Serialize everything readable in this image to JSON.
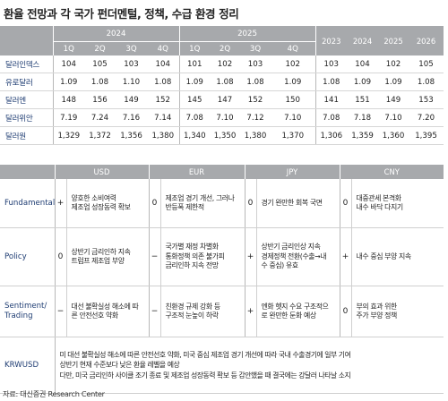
{
  "title": "환율 전망과 각 국가 펀더멘털, 정책, 수급 환경 정리",
  "forecast": {
    "year_2024": "2024",
    "year_2025": "2025",
    "quarters": [
      "1Q",
      "2Q",
      "3Q",
      "4Q"
    ],
    "annual_years": [
      "2023",
      "2024",
      "2025",
      "2026"
    ],
    "rows": [
      {
        "label": "달러인덱스",
        "q2024": [
          "104",
          "105",
          "103",
          "104"
        ],
        "q2025": [
          "101",
          "102",
          "103",
          "102"
        ],
        "annual": [
          "103",
          "104",
          "102",
          "105"
        ]
      },
      {
        "label": "유로달러",
        "q2024": [
          "1.09",
          "1.08",
          "1.10",
          "1.08"
        ],
        "q2025": [
          "1.09",
          "1.08",
          "1.08",
          "1.09"
        ],
        "annual": [
          "1.08",
          "1.09",
          "1.09",
          "1.08"
        ]
      },
      {
        "label": "달러엔",
        "q2024": [
          "148",
          "156",
          "149",
          "152"
        ],
        "q2025": [
          "145",
          "147",
          "152",
          "150"
        ],
        "annual": [
          "141",
          "151",
          "149",
          "153"
        ]
      },
      {
        "label": "달러위안",
        "q2024": [
          "7.19",
          "7.24",
          "7.16",
          "7.14"
        ],
        "q2025": [
          "7.08",
          "7.10",
          "7.12",
          "7.10"
        ],
        "annual": [
          "7.08",
          "7.18",
          "7.10",
          "7.20"
        ]
      },
      {
        "label": "달러원",
        "q2024": [
          "1,329",
          "1,372",
          "1,356",
          "1,380"
        ],
        "q2025": [
          "1,340",
          "1,350",
          "1,380",
          "1,370"
        ],
        "annual": [
          "1,306",
          "1,359",
          "1,360",
          "1,395"
        ]
      }
    ]
  },
  "fundamentals": {
    "currencies": [
      "USD",
      "EUR",
      "JPY",
      "CNY"
    ],
    "rows": [
      {
        "category": "Fundamental",
        "cells": [
          {
            "sign": "+",
            "text": "양호한 소비여력\n제조업 성장동력 확보"
          },
          {
            "sign": "0",
            "text": "제조업 경기 개선, 그러나\n반등폭 제한적"
          },
          {
            "sign": "0",
            "text": "경기 완만한 회복 국면"
          },
          {
            "sign": "0",
            "text": "대중관세 본격화\n내수 바닥 다지기"
          }
        ]
      },
      {
        "category": "Policy",
        "cells": [
          {
            "sign": "0",
            "text": "상반기 금리인하 지속\n트럼프 제조업 부양"
          },
          {
            "sign": "−",
            "text": "국가별 재정 차별화\n통화정책 의존 불가피\n금리인하 지속 전망"
          },
          {
            "sign": "+",
            "text": "상반기 금리인상 지속\n경제정책 전환(수출→내\n수 중심) 유효"
          },
          {
            "sign": "+",
            "text": "내수 중심 부양 지속"
          }
        ]
      },
      {
        "category": "Sentiment/\nTrading",
        "cells": [
          {
            "sign": "−",
            "text": "대선 불확실성 해소에 따\n른 안전선호 약화"
          },
          {
            "sign": "−",
            "text": "친환경 규제 강화 등\n구조적 눈높이 하락"
          },
          {
            "sign": "+",
            "text": "엔화 헷지 수요 구조적으\n로 완만한 둔화 예상"
          },
          {
            "sign": "0",
            "text": "부의 효과 위한\n주가 부양 정책"
          }
        ]
      }
    ],
    "krwusd": {
      "category": "KRWUSD",
      "lines": [
        "미 대선 불확실성 해소에 따른 안전선호 약화, 미국 중심 제조업 경기 개선에 따라 국내 수출경기에 일부 기여",
        "상반기 현재 수준보다 낮은 환율 레벨을 예상",
        "다만, 미국 금리인하 사이클 조기 종료 및 제조업 성장동력 확보 등 감안했을 때 결국에는 강달러 나타날 소지"
      ]
    }
  },
  "source": "자료: 대신증권 Research Center",
  "colors": {
    "header_bg": "#a7a9ac",
    "label_blue": "#1f3d73"
  }
}
